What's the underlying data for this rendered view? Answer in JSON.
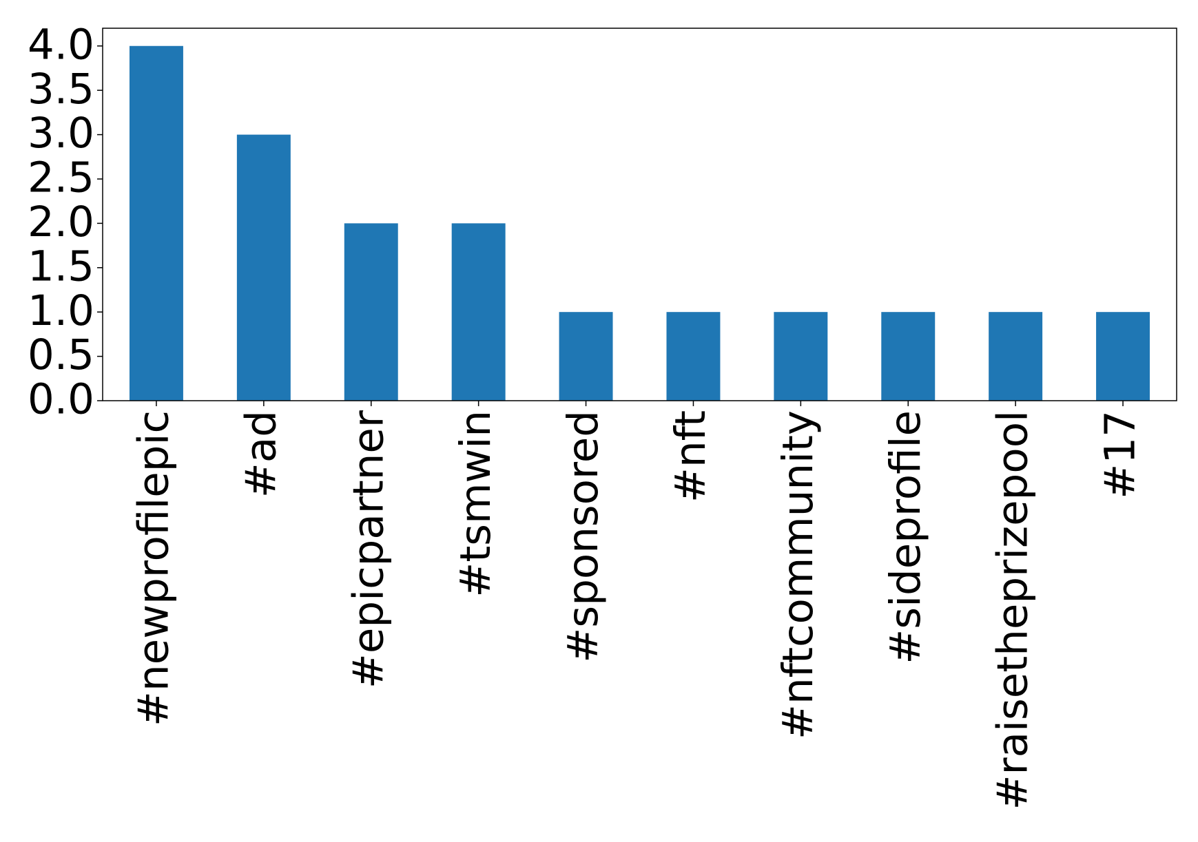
{
  "chart_data": {
    "type": "bar",
    "categories": [
      "#newprofilepic",
      "#ad",
      "#epicpartner",
      "#tsmwin",
      "#sponsored",
      "#nft",
      "#nftcommunity",
      "#sideprofile",
      "#raisetheprizepool",
      "#17"
    ],
    "values": [
      4,
      3,
      2,
      2,
      1,
      1,
      1,
      1,
      1,
      1
    ],
    "color": "#1f77b4",
    "ylim": [
      0,
      4.2
    ],
    "yticks": [
      {
        "value": 0,
        "label": "0.0"
      },
      {
        "value": 0.5,
        "label": "0.5"
      },
      {
        "value": 1,
        "label": "1.0"
      },
      {
        "value": 1.5,
        "label": "1.5"
      },
      {
        "value": 2,
        "label": "2.0"
      },
      {
        "value": 2.5,
        "label": "2.5"
      },
      {
        "value": 3,
        "label": "3.0"
      },
      {
        "value": 3.5,
        "label": "3.5"
      },
      {
        "value": 4,
        "label": "4.0"
      }
    ],
    "grid": false
  }
}
